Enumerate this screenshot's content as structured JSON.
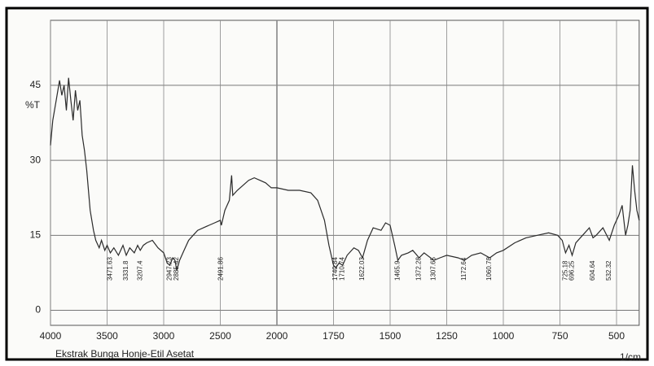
{
  "chart_data": {
    "type": "line",
    "y_label": "%T",
    "x_label": "1/cm",
    "caption": "Ekstrak Bunga Honje-Etil Asetat",
    "color": "#2b2b2b",
    "grid": true,
    "xlim": [
      4000,
      400
    ],
    "xticks": [
      4000,
      3500,
      3000,
      2500,
      2000,
      1750,
      1500,
      1250,
      1000,
      750,
      500
    ],
    "ylim": [
      -3,
      58
    ],
    "yticks": [
      0,
      15,
      30,
      45
    ],
    "x": [
      4000,
      3980,
      3950,
      3920,
      3900,
      3880,
      3860,
      3840,
      3820,
      3800,
      3780,
      3760,
      3740,
      3720,
      3700,
      3680,
      3650,
      3620,
      3600,
      3570,
      3550,
      3520,
      3500,
      3471,
      3440,
      3400,
      3360,
      3331,
      3300,
      3260,
      3230,
      3207,
      3180,
      3150,
      3100,
      3050,
      3000,
      2970,
      2947,
      2920,
      2900,
      2885,
      2860,
      2820,
      2780,
      2740,
      2700,
      2650,
      2600,
      2550,
      2500,
      2491,
      2460,
      2420,
      2400,
      2390,
      2350,
      2300,
      2250,
      2200,
      2150,
      2100,
      2050,
      2000,
      1950,
      1900,
      1850,
      1820,
      1790,
      1770,
      1750,
      1740,
      1725,
      1710,
      1690,
      1660,
      1640,
      1622,
      1600,
      1575,
      1540,
      1520,
      1500,
      1480,
      1466,
      1450,
      1420,
      1400,
      1372,
      1350,
      1307,
      1280,
      1250,
      1200,
      1172,
      1140,
      1100,
      1060,
      1030,
      1000,
      950,
      900,
      850,
      800,
      760,
      740,
      725,
      710,
      696,
      680,
      650,
      620,
      604,
      590,
      560,
      532,
      510,
      490,
      475,
      460,
      450,
      440,
      430,
      420,
      410,
      400
    ],
    "values": [
      33,
      38,
      42,
      46,
      43,
      45,
      40,
      46.5,
      42,
      38,
      44,
      40,
      42,
      35,
      32,
      28,
      20,
      16,
      14,
      12.5,
      14,
      12,
      13,
      11.5,
      12.5,
      11,
      13,
      11,
      12.5,
      11.5,
      13,
      12,
      13,
      13.5,
      14,
      12.5,
      11.5,
      9.5,
      9,
      10.5,
      10,
      8,
      10,
      12,
      14,
      15,
      16,
      16.5,
      17,
      17.5,
      18,
      17,
      20,
      22,
      27,
      23,
      24,
      25,
      26,
      26.5,
      26,
      25.5,
      24.5,
      24.5,
      24,
      24,
      23.5,
      22,
      18,
      13,
      9,
      8.5,
      9.5,
      9,
      11,
      12.5,
      12,
      10.5,
      14,
      16.5,
      16,
      17.5,
      17,
      13,
      10,
      11,
      11.5,
      12,
      10.5,
      11.5,
      10,
      10.5,
      11,
      10.5,
      10,
      11,
      11.5,
      10.5,
      11.5,
      12,
      13.5,
      14.5,
      15,
      15.5,
      15,
      14,
      11.5,
      13,
      11,
      13.5,
      15,
      16.5,
      14.5,
      15,
      16.5,
      14,
      17,
      19,
      21,
      15,
      17,
      20,
      29,
      24,
      20,
      18
    ],
    "peak_labels": [
      3471.63,
      3331.8,
      3207.4,
      2947.23,
      2885.42,
      2491.86,
      1740.84,
      1710.74,
      1622.03,
      1465.9,
      1372.28,
      1307.65,
      1172.64,
      1060.78,
      725.18,
      696.25,
      604.64,
      532.32
    ]
  }
}
